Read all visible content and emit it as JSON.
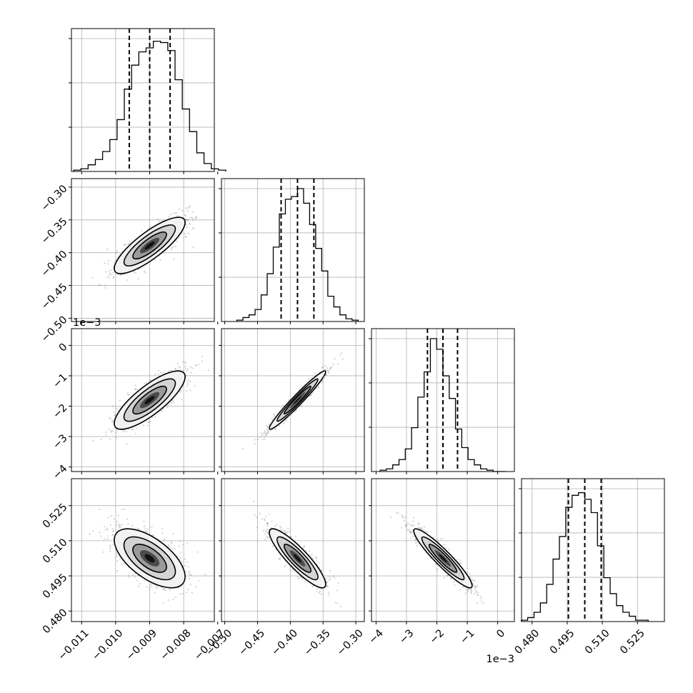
{
  "chart_data": {
    "type": "corner",
    "parameters": 4,
    "axes": [
      {
        "ticks": [
          -0.011,
          -0.01,
          -0.009,
          -0.008,
          -0.007
        ],
        "tick_labels": [
          "−0.011",
          "−0.010",
          "−0.009",
          "−0.008",
          "−0.007"
        ],
        "range": [
          -0.0113,
          -0.0071
        ]
      },
      {
        "ticks": [
          -0.5,
          -0.45,
          -0.4,
          -0.35,
          -0.3
        ],
        "tick_labels": [
          "−0.50",
          "−0.45",
          "−0.40",
          "−0.35",
          "−0.30"
        ],
        "range": [
          -0.505,
          -0.287
        ]
      },
      {
        "ticks": [
          -4,
          -3,
          -2,
          -1,
          0
        ],
        "tick_labels": [
          "−4",
          "−3",
          "−2",
          "−1",
          "0"
        ],
        "range": [
          -4.15,
          0.55
        ],
        "offset_text": "1e−3"
      },
      {
        "ticks": [
          0.48,
          0.495,
          0.51,
          0.525
        ],
        "tick_labels": [
          "0.480",
          "0.495",
          "0.510",
          "0.525"
        ],
        "range": [
          0.4755,
          0.5365
        ]
      }
    ],
    "means": [
      -0.009,
      -0.389,
      -1.8,
      0.5025
    ],
    "sigmas": [
      0.00052,
      0.0215,
      0.48,
      0.0063
    ],
    "correlations": [
      [
        1,
        0.82,
        0.8,
        -0.62
      ],
      [
        0.82,
        1,
        0.97,
        -0.88
      ],
      [
        0.8,
        0.97,
        1,
        -0.93
      ],
      [
        -0.62,
        -0.88,
        -0.93,
        1
      ]
    ],
    "quantiles": [
      [
        -0.0096,
        -0.009,
        -0.0084
      ],
      [
        -0.414,
        -0.389,
        -0.364
      ],
      [
        -2.31,
        -1.8,
        -1.32
      ],
      [
        0.4955,
        0.5025,
        0.5095
      ]
    ],
    "histograms": [
      [
        0.01,
        0.02,
        0.05,
        0.09,
        0.15,
        0.24,
        0.39,
        0.62,
        0.8,
        0.9,
        0.93,
        0.98,
        0.97,
        0.91,
        0.69,
        0.47,
        0.3,
        0.14,
        0.06,
        0.02,
        0.01
      ],
      [
        0.01,
        0.03,
        0.05,
        0.09,
        0.2,
        0.36,
        0.56,
        0.81,
        0.92,
        0.94,
        1.0,
        0.89,
        0.73,
        0.55,
        0.38,
        0.19,
        0.11,
        0.05,
        0.02,
        0.01
      ],
      [
        0.01,
        0.02,
        0.05,
        0.09,
        0.17,
        0.33,
        0.56,
        0.75,
        1.0,
        0.92,
        0.72,
        0.55,
        0.32,
        0.18,
        0.09,
        0.05,
        0.02,
        0.01,
        0.0,
        0.0
      ],
      [
        0.01,
        0.03,
        0.07,
        0.14,
        0.28,
        0.47,
        0.64,
        0.86,
        0.95,
        0.97,
        0.92,
        0.82,
        0.57,
        0.33,
        0.21,
        0.12,
        0.07,
        0.04,
        0.01,
        0.01
      ]
    ],
    "xlabel": "",
    "ylabel": "",
    "title": "",
    "grid": true,
    "colors": {
      "line": "#000000",
      "grid": "#b0b0b0",
      "points": "#808080",
      "density": "#000000"
    }
  }
}
